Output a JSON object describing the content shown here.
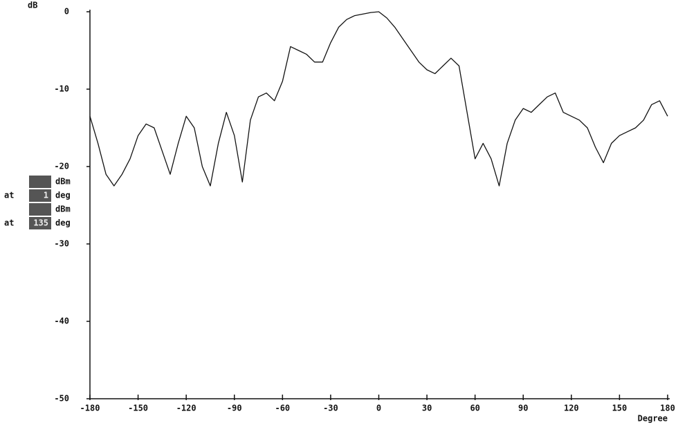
{
  "chart_data": {
    "type": "line",
    "y_label": "dB",
    "x_label": "Degree",
    "xlim": [
      -180,
      180
    ],
    "xticks": [
      -180,
      -150,
      -120,
      -90,
      -60,
      -30,
      0,
      30,
      60,
      90,
      120,
      150,
      180
    ],
    "ylim": [
      -50,
      0
    ],
    "yticks": [
      0,
      -10,
      -20,
      -30,
      -40,
      -50
    ],
    "grid": false,
    "x": [
      -180,
      -175,
      -170,
      -165,
      -160,
      -155,
      -150,
      -145,
      -140,
      -135,
      -130,
      -125,
      -120,
      -115,
      -110,
      -105,
      -100,
      -95,
      -90,
      -85,
      -80,
      -75,
      -70,
      -65,
      -60,
      -55,
      -50,
      -45,
      -40,
      -35,
      -30,
      -25,
      -20,
      -15,
      -10,
      -5,
      0,
      5,
      10,
      15,
      20,
      25,
      30,
      35,
      40,
      45,
      50,
      55,
      60,
      65,
      70,
      75,
      80,
      85,
      90,
      95,
      100,
      105,
      110,
      115,
      120,
      125,
      130,
      135,
      140,
      145,
      150,
      155,
      160,
      165,
      170,
      175,
      180
    ],
    "series": [
      {
        "color": "#111111",
        "values": [
          -13.5,
          -17,
          -21,
          -22.5,
          -21,
          -19,
          -16,
          -14.5,
          -15,
          -18,
          -21,
          -17,
          -13.5,
          -15,
          -20,
          -22.5,
          -17,
          -13,
          -16,
          -22,
          -14,
          -11,
          -10.5,
          -11.5,
          -9,
          -4.5,
          -5,
          -5.5,
          -6.5,
          -6.5,
          -4,
          -2,
          -1,
          -0.5,
          -0.3,
          -0.1,
          0,
          -0.8,
          -2,
          -3.5,
          -5,
          -6.5,
          -7.5,
          -8,
          -7,
          -6,
          -7,
          -13,
          -19,
          -17,
          -19,
          -22.5,
          -17,
          -14,
          -12.5,
          -13,
          -12,
          -11,
          -10.5,
          -13,
          -13.5,
          -14,
          -15,
          -17.5,
          -19.5,
          -17,
          -16,
          -15.5,
          -15,
          -14,
          -12,
          -11.5,
          -13.5
        ]
      }
    ],
    "readout": [
      {
        "unit": "dBm"
      },
      {
        "prefix": "at",
        "value": "1",
        "unit": "deg"
      },
      {
        "unit": "dBm"
      },
      {
        "prefix": "at",
        "value": "135",
        "unit": "deg"
      }
    ]
  }
}
